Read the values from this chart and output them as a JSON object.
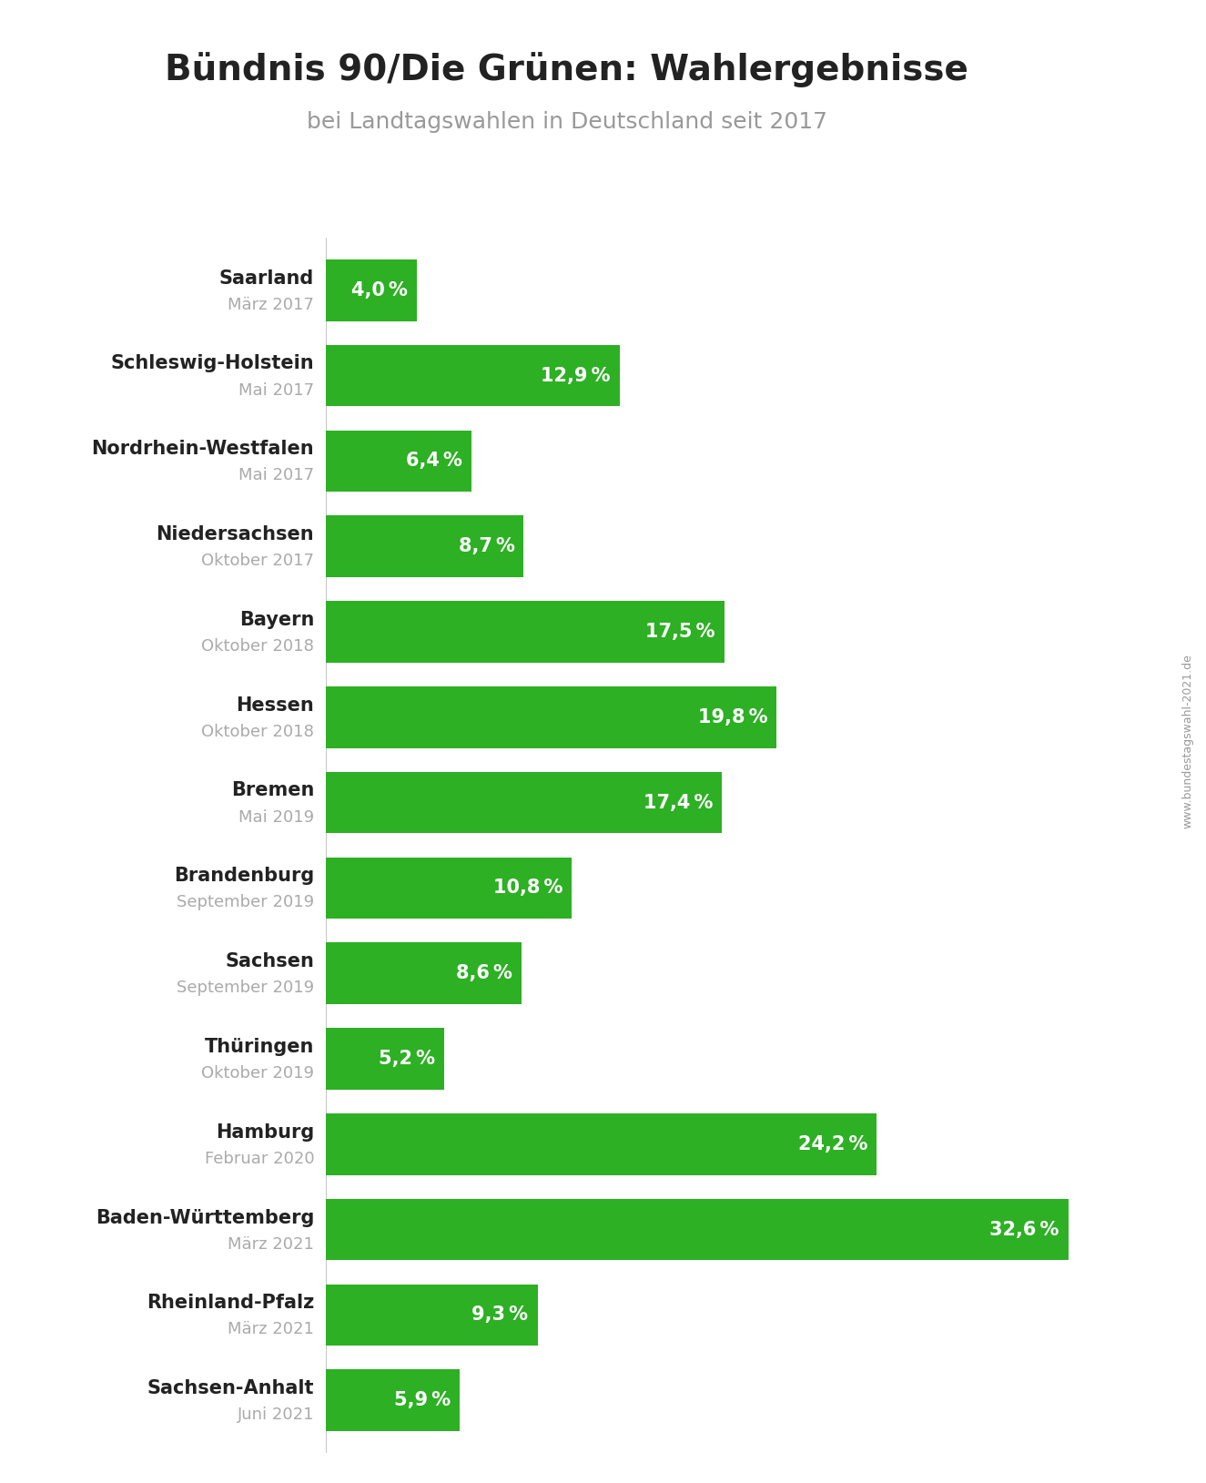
{
  "title": "Bündnis 90/Die Grünen: Wahlergebnisse",
  "subtitle": "bei Landtagswahlen in Deutschland seit 2017",
  "watermark": "www.bundestagswahl-2021.de",
  "categories": [
    "Saarland",
    "Schleswig-Holstein",
    "Nordrhein-Westfalen",
    "Niedersachsen",
    "Bayern",
    "Hessen",
    "Bremen",
    "Brandenburg",
    "Sachsen",
    "Thüringen",
    "Hamburg",
    "Baden-Württemberg",
    "Rheinland-Pfalz",
    "Sachsen-Anhalt"
  ],
  "dates": [
    "März 2017",
    "Mai 2017",
    "Mai 2017",
    "Oktober 2017",
    "Oktober 2018",
    "Oktober 2018",
    "Mai 2019",
    "September 2019",
    "September 2019",
    "Oktober 2019",
    "Februar 2020",
    "März 2021",
    "März 2021",
    "Juni 2021"
  ],
  "values": [
    4.0,
    12.9,
    6.4,
    8.7,
    17.5,
    19.8,
    17.4,
    10.8,
    8.6,
    5.2,
    24.2,
    32.6,
    9.3,
    5.9
  ],
  "labels": [
    "4,0 %",
    "12,9 %",
    "6,4 %",
    "8,7 %",
    "17,5 %",
    "19,8 %",
    "17,4 %",
    "10,8 %",
    "8,6 %",
    "5,2 %",
    "24,2 %",
    "32,6 %",
    "9,3 %",
    "5,9 %"
  ],
  "bar_color": "#2DB024",
  "bar_height": 0.72,
  "title_color": "#222222",
  "subtitle_color": "#999999",
  "label_color_name": "#222222",
  "label_color_date": "#aaaaaa",
  "bar_label_color": "#ffffff",
  "background_color": "#ffffff",
  "xlim": [
    0,
    36
  ],
  "title_fontsize": 28,
  "subtitle_fontsize": 18,
  "category_fontsize": 15,
  "date_fontsize": 13,
  "bar_label_fontsize": 15
}
